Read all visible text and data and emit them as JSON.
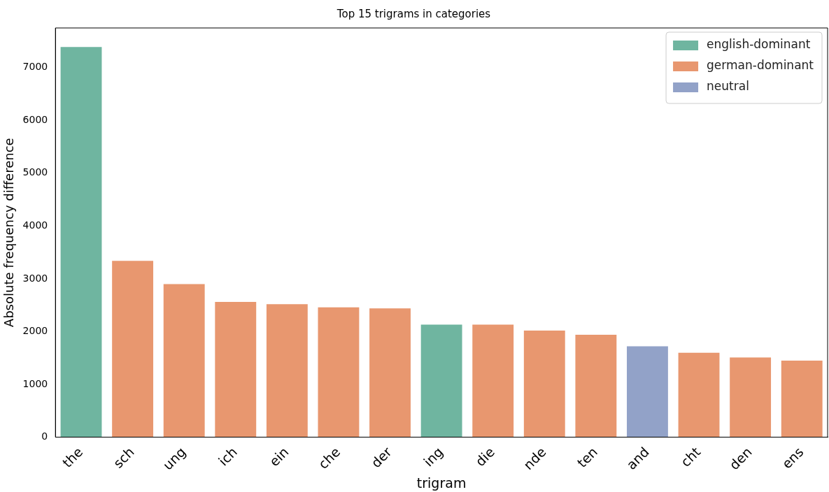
{
  "chart_data": {
    "type": "bar",
    "title": "Top 15 trigrams in categories",
    "xlabel": "trigram",
    "ylabel": "Absolute frequency difference",
    "categories": [
      "the",
      "sch",
      "ung",
      "ich",
      "ein",
      "che",
      "der",
      "ing",
      "die",
      "nde",
      "ten",
      "and",
      "cht",
      "den",
      "ens"
    ],
    "series": [
      {
        "name": "english-dominant",
        "color": "#6fb5a0",
        "values": [
          7390,
          null,
          null,
          null,
          null,
          null,
          null,
          2130,
          null,
          null,
          null,
          null,
          null,
          null,
          null
        ]
      },
      {
        "name": "german-dominant",
        "color": "#e8976f",
        "values": [
          null,
          3340,
          2900,
          2560,
          2520,
          2460,
          2440,
          null,
          2130,
          2020,
          1940,
          null,
          1600,
          1510,
          1450
        ]
      },
      {
        "name": "neutral",
        "color": "#92a2c8",
        "values": [
          null,
          null,
          null,
          null,
          null,
          null,
          null,
          null,
          null,
          null,
          null,
          1720,
          null,
          null,
          null
        ]
      }
    ],
    "ylim": [
      0,
      7750
    ],
    "yticks": [
      0,
      1000,
      2000,
      3000,
      4000,
      5000,
      6000,
      7000
    ],
    "grid": false,
    "legend": "top right",
    "stacked": true
  }
}
